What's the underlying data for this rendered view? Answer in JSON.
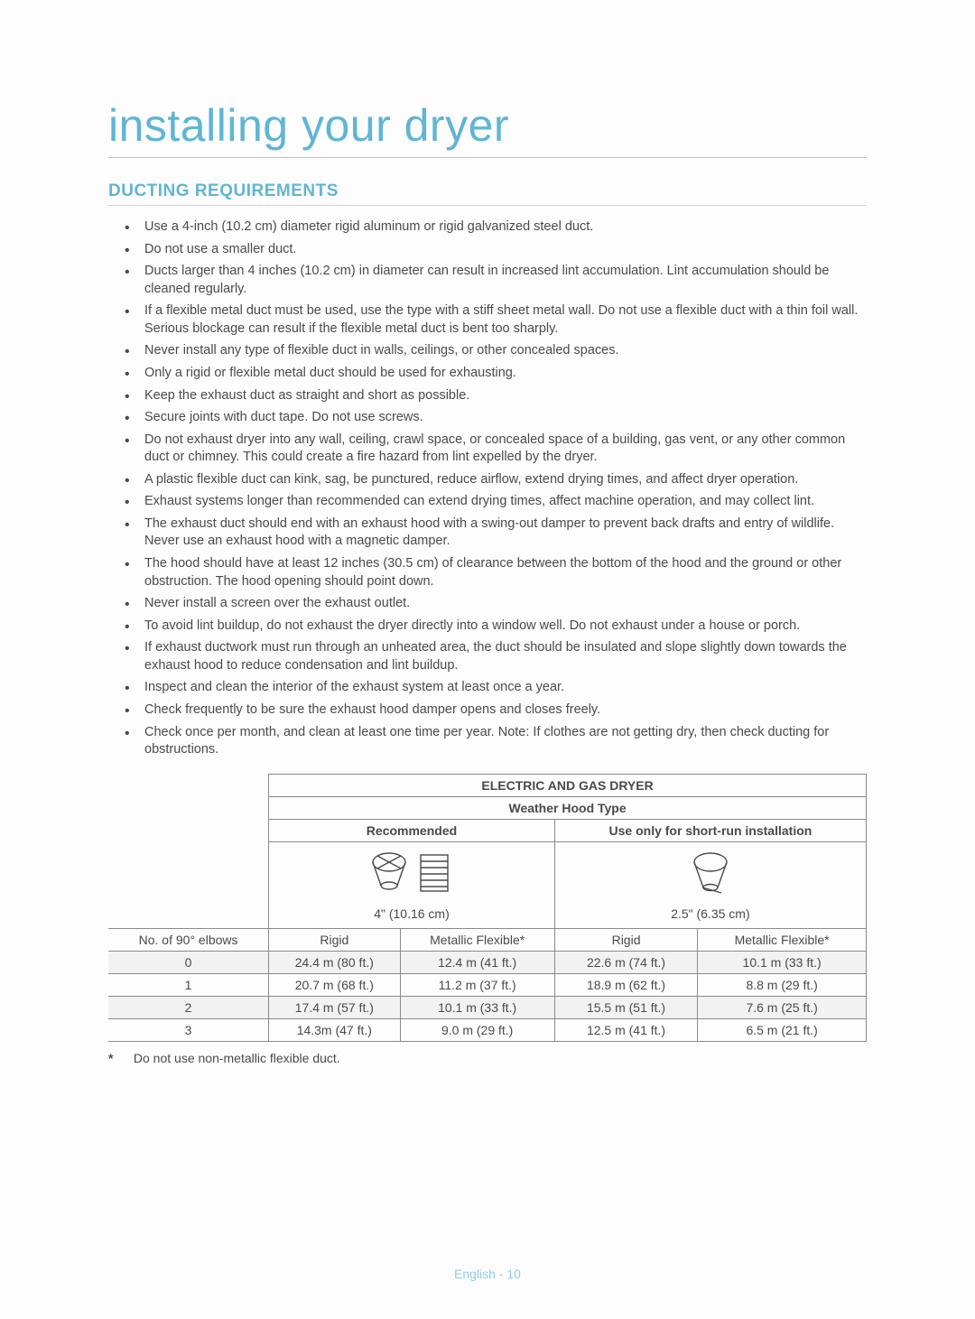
{
  "title": "installing your dryer",
  "section_heading": "DUCTING REQUIREMENTS",
  "bullets": [
    "Use a 4-inch (10.2 cm) diameter rigid aluminum or rigid galvanized steel duct.",
    "Do not use a smaller duct.",
    "Ducts larger than 4 inches (10.2 cm) in diameter can result in increased lint accumulation. Lint accumulation should be cleaned regularly.",
    "If a flexible metal duct must be used, use the type with a stiff sheet metal wall. Do not use a flexible duct with a thin foil wall. Serious blockage can result if the flexible metal duct is bent too sharply.",
    "Never install any type of flexible duct in walls, ceilings, or other concealed spaces.",
    "Only a rigid or flexible metal duct should be used for exhausting.",
    "Keep the exhaust duct as straight and short as possible.",
    "Secure joints with duct tape. Do not use screws.",
    "Do not exhaust dryer into any wall, ceiling, crawl space, or concealed space of a building, gas vent, or any other common duct or chimney. This could create a fire hazard from lint expelled by the dryer.",
    "A plastic flexible duct can kink, sag, be punctured, reduce airflow, extend drying times, and affect dryer operation.",
    "Exhaust systems longer than recommended can extend drying times, affect machine operation, and may collect lint.",
    "The exhaust duct should end with an exhaust hood with a swing-out damper to prevent back drafts and entry of wildlife. Never use an exhaust hood with a magnetic damper.",
    "The hood should have at least 12 inches (30.5 cm) of clearance between the bottom of the hood and the ground or other obstruction. The hood opening should point down.",
    "Never install a screen over the exhaust outlet.",
    "To avoid lint buildup, do not exhaust the dryer directly into a window well. Do not exhaust under a house or porch.",
    "If exhaust ductwork must run through an unheated area, the duct should be insulated and slope slightly down towards the exhaust hood to reduce condensation and lint buildup.",
    "Inspect and clean the interior of the exhaust system at least once a year.",
    "Check frequently to be sure the exhaust hood damper opens and closes freely.",
    "Check once per month, and clean at least one time per year. Note: If clothes are not getting dry, then check ducting for obstructions."
  ],
  "table": {
    "top_header": "ELECTRIC AND GAS DRYER",
    "sub_header": "Weather Hood Type",
    "col_group_left": "Recommended",
    "col_group_right": "Use only for short-run installation",
    "hood_left_label": "4\" (10.16 cm)",
    "hood_right_label": "2.5\" (6.35 cm)",
    "row_header": "No. of 90° elbows",
    "columns": [
      "Rigid",
      "Metallic Flexible*",
      "Rigid",
      "Metallic Flexible*"
    ],
    "rows": [
      {
        "elbows": "0",
        "vals": [
          "24.4 m (80 ft.)",
          "12.4 m (41 ft.)",
          "22.6 m (74 ft.)",
          "10.1 m (33 ft.)"
        ]
      },
      {
        "elbows": "1",
        "vals": [
          "20.7 m (68 ft.)",
          "11.2 m (37 ft.)",
          "18.9 m (62 ft.)",
          "8.8 m (29 ft.)"
        ]
      },
      {
        "elbows": "2",
        "vals": [
          "17.4 m (57 ft.)",
          "10.1 m (33 ft.)",
          "15.5 m (51 ft.)",
          "7.6 m (25 ft.)"
        ]
      },
      {
        "elbows": "3",
        "vals": [
          "14.3m (47 ft.)",
          "9.0 m (29 ft.)",
          "12.5 m (41 ft.)",
          "6.5 m (21 ft.)"
        ]
      }
    ]
  },
  "footnote_marker": "*",
  "footnote_text": "Do not use non-metallic flexible duct.",
  "footer": "English - 10",
  "colors": {
    "accent": "#5fb5d6",
    "text": "#4a4a4a",
    "border": "#8a8a8a",
    "background": "#fdfdfd",
    "zebra": "#f2f2f2"
  }
}
